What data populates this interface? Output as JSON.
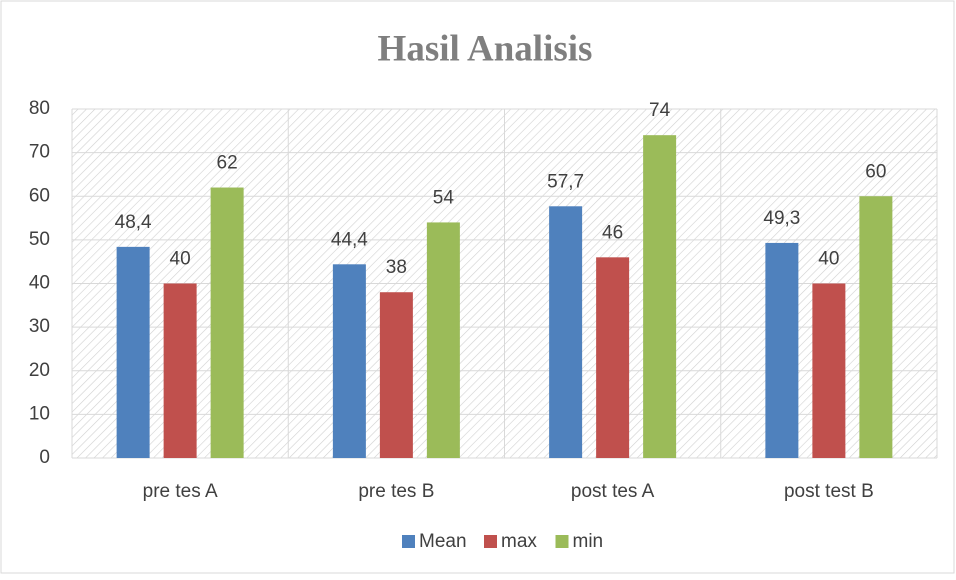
{
  "chart_data": {
    "type": "bar",
    "title": "Hasil Analisis",
    "categories": [
      "pre tes A",
      "pre tes B",
      "post tes A",
      "post test B"
    ],
    "series": [
      {
        "name": "Mean",
        "color": "#4f81bd",
        "values": [
          48.4,
          44.4,
          57.7,
          49.3
        ],
        "value_labels": [
          "48,4",
          "44,4",
          "57,7",
          "49,3"
        ]
      },
      {
        "name": "max",
        "color": "#c0504d",
        "values": [
          40,
          38,
          46,
          40
        ]
      },
      {
        "name": "min",
        "color": "#9bbb59",
        "values": [
          62,
          54,
          74,
          60
        ]
      }
    ],
    "ylim": [
      0,
      80
    ],
    "yticks": [
      0,
      10,
      20,
      30,
      40,
      50,
      60,
      70,
      80
    ],
    "grid": true,
    "legend": "bottom"
  }
}
